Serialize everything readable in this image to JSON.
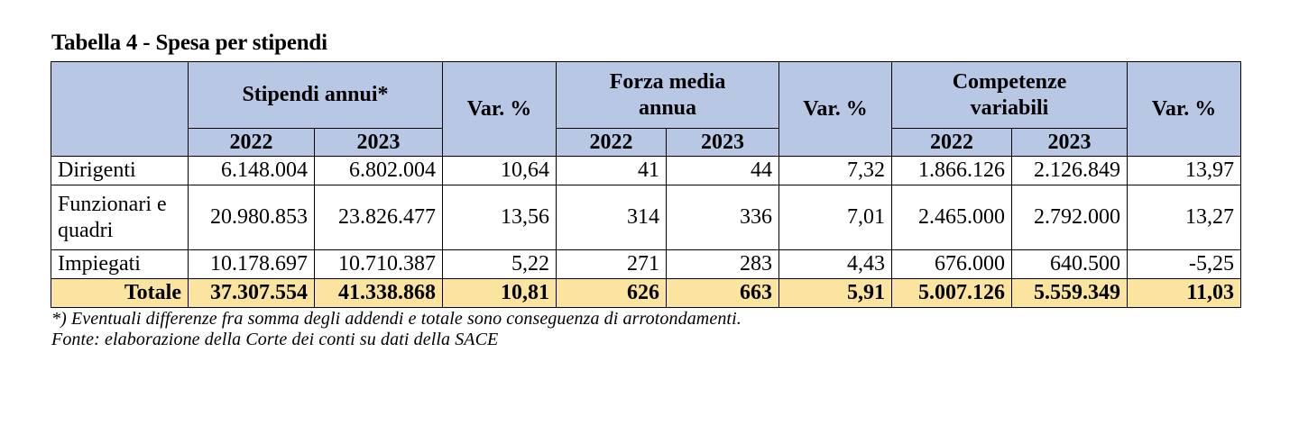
{
  "title": "Tabella 4 - Spesa per stipendi",
  "headers": {
    "group1": "Stipendi annui*",
    "var1": "Var. %",
    "group2": "Forza media annua",
    "var2": "Var. %",
    "group3": "Competenze variabili",
    "var3": "Var. %",
    "years": [
      "2022",
      "2023",
      "2022",
      "2023",
      "2022",
      "2023"
    ]
  },
  "rows": [
    {
      "label": "Dirigenti",
      "values": [
        "6.148.004",
        "6.802.004",
        "10,64",
        "41",
        "44",
        "7,32",
        "1.866.126",
        "2.126.849",
        "13,97"
      ]
    },
    {
      "label": "Funzionari e quadri",
      "values": [
        "20.980.853",
        "23.826.477",
        "13,56",
        "314",
        "336",
        "7,01",
        "2.465.000",
        "2.792.000",
        "13,27"
      ]
    },
    {
      "label": "Impiegati",
      "values": [
        "10.178.697",
        "10.710.387",
        "5,22",
        "271",
        "283",
        "4,43",
        "676.000",
        "640.500",
        "-5,25"
      ]
    }
  ],
  "total": {
    "label": "Totale",
    "values": [
      "37.307.554",
      "41.338.868",
      "10,81",
      "626",
      "663",
      "5,91",
      "5.007.126",
      "5.559.349",
      "11,03"
    ]
  },
  "notes": [
    "*) Eventuali differenze fra somma degli addendi e totale sono conseguenza di arrotondamenti.",
    "Fonte: elaborazione della Corte dei conti su dati della SACE"
  ],
  "colors": {
    "header_bg": "#b8c8e4",
    "total_bg": "#fbe4a0"
  }
}
